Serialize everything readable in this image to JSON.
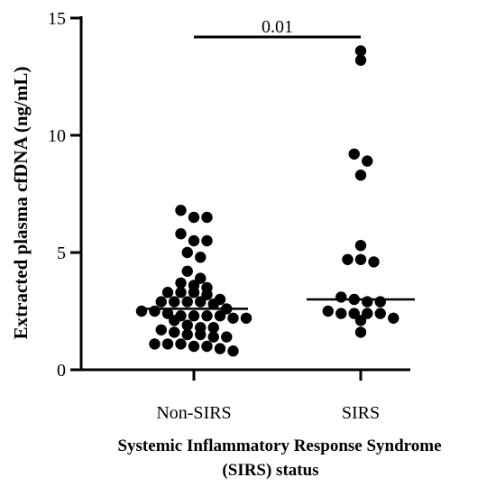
{
  "chart_data": {
    "type": "scatter",
    "xlabel": [
      "Systemic Inflammatory Response Syndrome",
      "(SIRS) status"
    ],
    "ylabel": "Extracted plasma cfDNA (ng/mL)",
    "ylim": [
      0,
      15
    ],
    "yticks": [
      "0",
      "5",
      "10",
      "15"
    ],
    "categories": [
      "Non-SIRS",
      "SIRS"
    ],
    "grid": false,
    "legend": "none",
    "series": [
      {
        "name": "Non-SIRS",
        "median": 2.6,
        "values": [
          6.8,
          6.5,
          6.5,
          5.8,
          5.5,
          5.5,
          5.0,
          4.8,
          4.2,
          3.9,
          3.7,
          3.6,
          3.5,
          3.3,
          3.3,
          3.3,
          3.2,
          3.0,
          2.9,
          2.9,
          2.9,
          2.9,
          2.8,
          2.6,
          2.5,
          2.5,
          2.4,
          2.3,
          2.3,
          2.3,
          2.3,
          2.2,
          2.2,
          2.1,
          1.9,
          1.8,
          1.8,
          1.7,
          1.6,
          1.5,
          1.5,
          1.4,
          1.4,
          1.1,
          1.1,
          1.1,
          1.0,
          1.0,
          0.9,
          0.8
        ]
      },
      {
        "name": "SIRS",
        "median": 3.0,
        "values": [
          13.6,
          13.2,
          9.2,
          8.9,
          8.3,
          5.3,
          4.7,
          4.7,
          4.6,
          3.1,
          3.0,
          2.9,
          2.9,
          2.5,
          2.4,
          2.4,
          2.4,
          2.4,
          2.2,
          2.1,
          1.6
        ]
      }
    ],
    "annotation": {
      "text": "0.01"
    }
  }
}
